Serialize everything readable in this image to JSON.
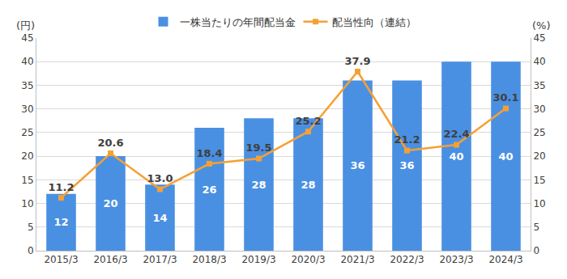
{
  "chart_data": {
    "type": "bar",
    "categories": [
      "2015/3",
      "2016/3",
      "2017/3",
      "2018/3",
      "2019/3",
      "2020/3",
      "2021/3",
      "2022/3",
      "2023/3",
      "2024/3"
    ],
    "series": [
      {
        "name": "一株当たりの年間配当金",
        "type": "bar",
        "color": "#4a90e2",
        "values": [
          12,
          20,
          14,
          26,
          28,
          28,
          36,
          36,
          40,
          40
        ]
      },
      {
        "name": "配当性向（連結）",
        "type": "line",
        "color": "#f5a035",
        "marker": "square",
        "axis": "y2",
        "values": [
          11.2,
          20.6,
          13.0,
          18.4,
          19.5,
          25.2,
          37.9,
          21.2,
          22.4,
          30.1
        ],
        "value_labels": [
          "11.2",
          "20.6",
          "13.0",
          "18.4",
          "19.5",
          "25.2",
          "37.9",
          "21.2",
          "22.4",
          "30.1"
        ]
      }
    ],
    "y_label": "(円)",
    "y2_label": "(%)",
    "ylim": [
      0,
      45
    ],
    "yticks": [
      0,
      5,
      10,
      15,
      20,
      25,
      30,
      35,
      40,
      45
    ],
    "y2lim": [
      0,
      45
    ],
    "y2ticks": [
      0,
      5,
      10,
      15,
      20,
      25,
      30,
      35,
      40,
      45
    ],
    "grid": true,
    "legend": "top",
    "data_labels": true
  }
}
